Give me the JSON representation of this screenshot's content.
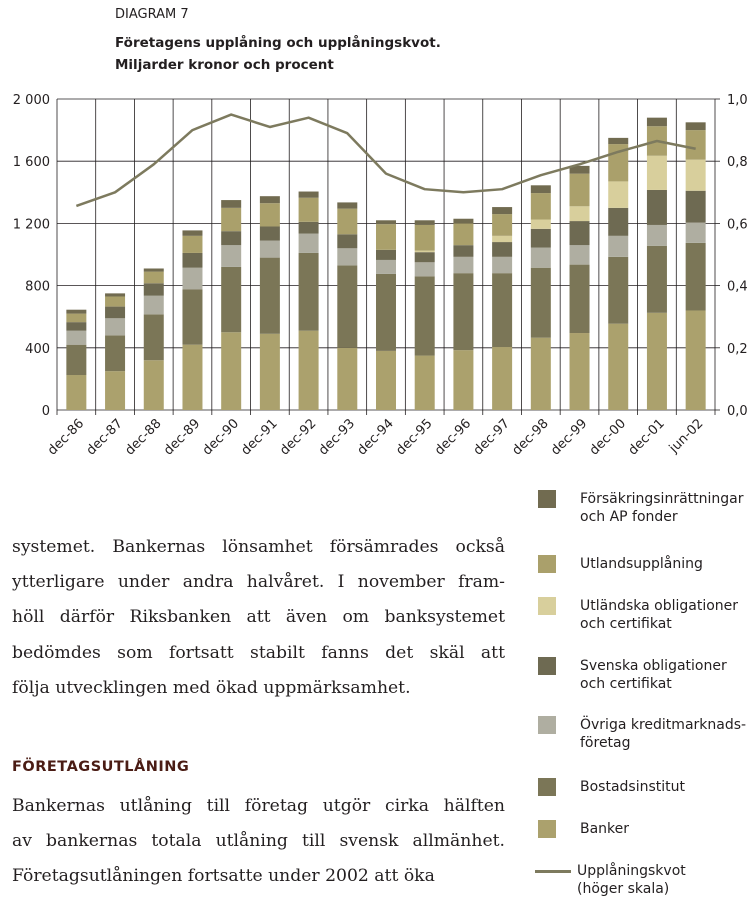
{
  "chart_data": {
    "type": "bar",
    "stacked": true,
    "label": "DIAGRAM 7",
    "title": "Företagens upplåning och upplåningskvot.",
    "subtitle": "Miljarder kronor och procent",
    "categories": [
      "dec-86",
      "dec-87",
      "dec-88",
      "dec-89",
      "dec-90",
      "dec-91",
      "dec-92",
      "dec-93",
      "dec-94",
      "dec-95",
      "dec-96",
      "dec-97",
      "dec-98",
      "dec-99",
      "dec-00",
      "dec-01",
      "jun-02"
    ],
    "ylim": [
      0,
      2000
    ],
    "yticks": [
      0,
      400,
      800,
      {
        "value": 1200,
        "label": "1 200"
      },
      {
        "value": 1600,
        "label": "1 600"
      },
      {
        "value": 2000,
        "label": "2 000"
      }
    ],
    "y2lim": [
      0,
      1
    ],
    "y2ticks": [
      {
        "value": 0,
        "label": "0,0"
      },
      {
        "value": 0.2,
        "label": "0,2"
      },
      {
        "value": 0.4,
        "label": "0,4"
      },
      {
        "value": 0.6,
        "label": "0,6"
      },
      {
        "value": 0.8,
        "label": "0,8"
      },
      {
        "value": 1,
        "label": "1,0"
      }
    ],
    "grid": true,
    "series": [
      {
        "name": "Försäkringsinrättningar och AP fonder",
        "color": "#716b50",
        "values": [
          25,
          20,
          20,
          35,
          50,
          45,
          40,
          40,
          25,
          30,
          30,
          45,
          50,
          50,
          40,
          55,
          50
        ]
      },
      {
        "name": "Utlandsupplåning",
        "color": "#aaa06b",
        "values": [
          55,
          65,
          75,
          110,
          150,
          150,
          155,
          165,
          165,
          165,
          140,
          140,
          170,
          210,
          240,
          190,
          190
        ]
      },
      {
        "name": "Utländska obligationer och certifikat",
        "color": "#d8cf9c",
        "values": [
          0,
          0,
          0,
          0,
          0,
          0,
          0,
          0,
          0,
          10,
          0,
          40,
          60,
          95,
          170,
          220,
          200
        ]
      },
      {
        "name": "Svenska obligationer och certifikat",
        "color": "#6e6a52",
        "values": [
          55,
          75,
          80,
          95,
          90,
          90,
          75,
          90,
          65,
          65,
          75,
          95,
          120,
          155,
          180,
          225,
          205
        ]
      },
      {
        "name": "Övriga kreditmarknads-företag",
        "color": "#afaea1",
        "values": [
          90,
          110,
          120,
          140,
          140,
          110,
          125,
          110,
          90,
          90,
          105,
          105,
          130,
          125,
          135,
          135,
          130
        ]
      },
      {
        "name": "Bostadsinstitut",
        "color": "#7b7657",
        "values": [
          195,
          230,
          295,
          355,
          420,
          490,
          500,
          530,
          495,
          510,
          495,
          475,
          450,
          440,
          430,
          430,
          435
        ]
      },
      {
        "name": "Banker",
        "color": "#aba16d",
        "values": [
          225,
          250,
          320,
          420,
          500,
          490,
          510,
          400,
          380,
          350,
          385,
          405,
          465,
          495,
          555,
          625,
          640
        ]
      },
      {
        "name": "Upplåningskvot (höger skala)",
        "color": "#7d7a5e",
        "type": "line",
        "axis": "y2",
        "values": [
          0.656,
          0.7,
          0.79,
          0.9,
          0.95,
          0.91,
          0.94,
          0.89,
          0.76,
          0.71,
          0.7,
          0.71,
          0.755,
          0.79,
          0.83,
          0.865,
          0.84
        ]
      }
    ]
  },
  "body": {
    "paragraphs": [
      {
        "lines": [
          "systemet. Bankernas lönsamhet försämrades också",
          "ytterligare under andra halvåret. I november fram-",
          "höll därför Riksbanken att även om banksystemet",
          "bedömdes som fortsatt stabilt fanns det skäl att",
          "följa utvecklingen med ökad uppmärksamhet."
        ]
      },
      {
        "lines": [
          "Bankernas utlåning till företag utgör cirka hälften",
          "av bankernas totala utlåning till svensk allmänhet.",
          "Företagsutlåningen fortsatte under 2002 att öka"
        ]
      }
    ],
    "heading": "FÖRETAGSUTLÅNING"
  }
}
